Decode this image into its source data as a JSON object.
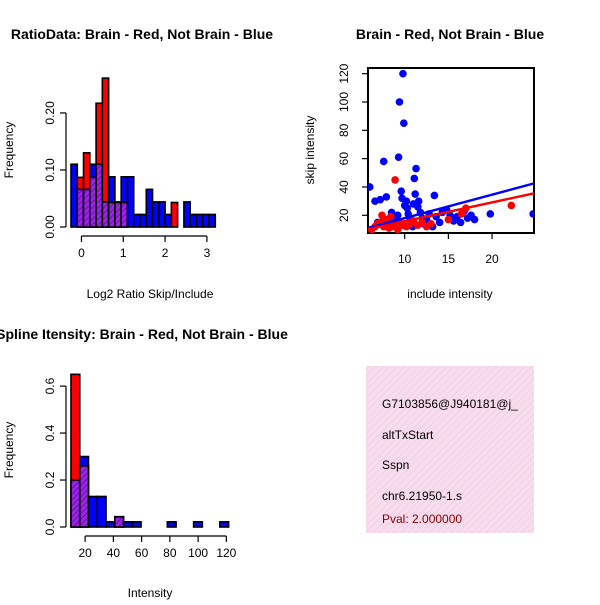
{
  "colors": {
    "brain": "#ff0000",
    "not_brain": "#0000ff",
    "overlap": "#a020f0",
    "info_bg": "#f7dcee",
    "pval": "#8b0000",
    "axis": "#000000"
  },
  "chart_data": [
    {
      "id": "ratio-histogram",
      "type": "bar",
      "title": "RatioData: Brain - Red, Not Brain - Blue",
      "xlabel": "Log2 Ratio Skip/Include",
      "ylabel": "Frequency",
      "x_ticks": [
        0,
        1,
        2,
        3
      ],
      "y_ticks": [
        "0.00",
        "0.10",
        "0.20"
      ],
      "xlim": [
        -0.25,
        3.6
      ],
      "ylim": [
        0,
        0.27
      ],
      "bin_width": 0.15,
      "bins_start": [
        -0.25,
        -0.1,
        0.05,
        0.2,
        0.35,
        0.5,
        0.65,
        0.8,
        0.95,
        1.1,
        1.25,
        1.4,
        1.55,
        1.7,
        1.85,
        2.0,
        2.15,
        2.3,
        2.45,
        2.6,
        2.75,
        2.9,
        3.05,
        3.2,
        3.35
      ],
      "series": [
        {
          "name": "Brain",
          "color": "red",
          "values": [
            0.0,
            0.087,
            0.13,
            0.087,
            0.217,
            0.261,
            0.043,
            0.043,
            0.043,
            0.0,
            0.0,
            0.0,
            0.0,
            0.0,
            0.0,
            0.0,
            0.043,
            0.0,
            0.0,
            0.0,
            0.0,
            0.0,
            0.0,
            0.0,
            0.0
          ]
        },
        {
          "name": "Not Brain",
          "color": "blue",
          "values": [
            0.11,
            0.066,
            0.066,
            0.11,
            0.11,
            0.044,
            0.088,
            0.044,
            0.088,
            0.088,
            0.022,
            0.022,
            0.066,
            0.044,
            0.044,
            0.022,
            0.0,
            0.0,
            0.044,
            0.022,
            0.022,
            0.022,
            0.022,
            0.0,
            0.0
          ]
        }
      ]
    },
    {
      "id": "intensity-scatter",
      "type": "scatter",
      "title": "Brain - Red, Not Brain - Blue",
      "xlabel": "include intensity",
      "ylabel": "skip intensity",
      "x_ticks": [
        10,
        15,
        20
      ],
      "y_ticks": [
        20,
        40,
        60,
        80,
        100,
        120
      ],
      "xlim": [
        5.8,
        24.8
      ],
      "ylim": [
        7.5,
        124
      ],
      "series": [
        {
          "name": "Brain",
          "color": "red",
          "points": [
            [
              6.2,
              10
            ],
            [
              6.6,
              12
            ],
            [
              6.9,
              14
            ],
            [
              7.2,
              15
            ],
            [
              7.4,
              20
            ],
            [
              7.6,
              12
            ],
            [
              7.8,
              17
            ],
            [
              8.0,
              13
            ],
            [
              8.2,
              11
            ],
            [
              8.4,
              19
            ],
            [
              8.6,
              12
            ],
            [
              8.8,
              14
            ],
            [
              8.9,
              45
            ],
            [
              9.2,
              10
            ],
            [
              9.5,
              15
            ],
            [
              9.8,
              13
            ],
            [
              10.2,
              12
            ],
            [
              10.6,
              14
            ],
            [
              11.0,
              16
            ],
            [
              11.5,
              13
            ],
            [
              12.0,
              15
            ],
            [
              12.5,
              12
            ],
            [
              13.0,
              14
            ],
            [
              15.0,
              17
            ],
            [
              16.5,
              21
            ],
            [
              17.0,
              25
            ],
            [
              22.2,
              27
            ]
          ],
          "fit": [
            [
              5.8,
              10.2
            ],
            [
              24.8,
              35.5
            ]
          ]
        },
        {
          "name": "Not Brain",
          "color": "blue",
          "points": [
            [
              6.0,
              40
            ],
            [
              6.6,
              30
            ],
            [
              6.9,
              15
            ],
            [
              7.2,
              31
            ],
            [
              7.6,
              58
            ],
            [
              7.9,
              33
            ],
            [
              8.2,
              14
            ],
            [
              8.5,
              22
            ],
            [
              8.7,
              17
            ],
            [
              8.9,
              16
            ],
            [
              9.2,
              20
            ],
            [
              9.3,
              61
            ],
            [
              9.4,
              100
            ],
            [
              9.6,
              37
            ],
            [
              9.7,
              32
            ],
            [
              9.8,
              120
            ],
            [
              9.9,
              85
            ],
            [
              10.0,
              27
            ],
            [
              10.2,
              30
            ],
            [
              10.3,
              25
            ],
            [
              10.4,
              21
            ],
            [
              10.6,
              18
            ],
            [
              10.8,
              15
            ],
            [
              10.9,
              12
            ],
            [
              11.0,
              28
            ],
            [
              11.1,
              46
            ],
            [
              11.2,
              35
            ],
            [
              11.3,
              53
            ],
            [
              11.5,
              26
            ],
            [
              11.6,
              30
            ],
            [
              11.8,
              22
            ],
            [
              12.0,
              18
            ],
            [
              12.2,
              14
            ],
            [
              12.5,
              17
            ],
            [
              12.8,
              21
            ],
            [
              13.0,
              13
            ],
            [
              13.2,
              12
            ],
            [
              13.4,
              34
            ],
            [
              13.6,
              19
            ],
            [
              14.0,
              15
            ],
            [
              14.3,
              22
            ],
            [
              14.8,
              24
            ],
            [
              15.2,
              20
            ],
            [
              15.6,
              16
            ],
            [
              16.0,
              19
            ],
            [
              16.4,
              15
            ],
            [
              16.8,
              23
            ],
            [
              17.2,
              18
            ],
            [
              17.6,
              20
            ],
            [
              18.0,
              17
            ],
            [
              19.8,
              21
            ],
            [
              24.7,
              21
            ]
          ],
          "fit": [
            [
              5.8,
              11.0
            ],
            [
              24.8,
              42.5
            ]
          ]
        }
      ]
    },
    {
      "id": "intensity-histogram",
      "type": "bar",
      "title": "Spline Itensity: Brain - Red, Not Brain - Blue",
      "xlabel": "Intensity",
      "ylabel": "Frequency",
      "x_ticks": [
        20,
        40,
        60,
        80,
        100,
        120
      ],
      "y_ticks": [
        "0.0",
        "0.2",
        "0.4",
        "0.6"
      ],
      "xlim": [
        10,
        124
      ],
      "ylim": [
        0,
        0.66
      ],
      "bin_width": 6.2,
      "bins_start": [
        10,
        16.2,
        22.4,
        28.6,
        34.8,
        41.0,
        47.2,
        53.4,
        59.6,
        65.8,
        72.0,
        78.2,
        84.4,
        90.6,
        96.8,
        103.0,
        109.2,
        115.4
      ],
      "series": [
        {
          "name": "Brain",
          "color": "red",
          "values": [
            0.65,
            0.26,
            0.0,
            0.0,
            0.0,
            0.043,
            0.0,
            0.0,
            0.0,
            0.0,
            0.0,
            0.0,
            0.0,
            0.0,
            0.0,
            0.0,
            0.0,
            0.0
          ]
        },
        {
          "name": "Not Brain",
          "color": "blue",
          "values": [
            0.2,
            0.3,
            0.13,
            0.13,
            0.022,
            0.044,
            0.022,
            0.022,
            0.0,
            0.0,
            0.0,
            0.022,
            0.0,
            0.0,
            0.022,
            0.0,
            0.0,
            0.022
          ]
        }
      ]
    }
  ],
  "info_box": {
    "lines": [
      "G7103856@J940181@j_",
      "altTxStart",
      "Sspn",
      "chr6.21950-1.s"
    ],
    "pval": "Pval: 2.000000"
  }
}
